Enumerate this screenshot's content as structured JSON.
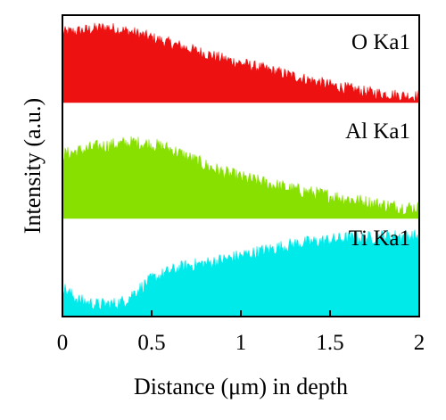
{
  "chart_data": {
    "type": "area",
    "xlabel": "Distance (μm) in depth",
    "ylabel": "Intensity (a.u.)",
    "xlim": [
      0,
      2
    ],
    "xticks": [
      "0",
      "0.5",
      "1",
      "1.5",
      "2"
    ],
    "grid": false,
    "stacked_panels": true,
    "series": [
      {
        "name": "O Ka1",
        "color": "#ee1111",
        "x": [
          0,
          0.1,
          0.2,
          0.25,
          0.3,
          0.4,
          0.5,
          0.6,
          0.7,
          0.8,
          0.9,
          1.0,
          1.1,
          1.2,
          1.3,
          1.4,
          1.5,
          1.6,
          1.7,
          1.8,
          1.9,
          2.0
        ],
        "values": [
          0.8,
          0.82,
          0.85,
          0.86,
          0.84,
          0.8,
          0.74,
          0.68,
          0.62,
          0.56,
          0.5,
          0.45,
          0.4,
          0.35,
          0.3,
          0.25,
          0.2,
          0.16,
          0.12,
          0.1,
          0.08,
          0.07
        ]
      },
      {
        "name": "Al Ka1",
        "color": "#88e000",
        "x": [
          0,
          0.1,
          0.2,
          0.3,
          0.4,
          0.5,
          0.6,
          0.7,
          0.8,
          0.9,
          1.0,
          1.1,
          1.2,
          1.3,
          1.4,
          1.5,
          1.6,
          1.7,
          1.8,
          1.9,
          2.0
        ],
        "values": [
          0.62,
          0.66,
          0.7,
          0.72,
          0.74,
          0.72,
          0.68,
          0.6,
          0.52,
          0.45,
          0.4,
          0.36,
          0.32,
          0.28,
          0.25,
          0.22,
          0.19,
          0.16,
          0.13,
          0.11,
          0.1
        ]
      },
      {
        "name": "Ti Ka1",
        "color": "#00eaea",
        "x": [
          0,
          0.05,
          0.1,
          0.2,
          0.3,
          0.35,
          0.4,
          0.5,
          0.6,
          0.7,
          0.8,
          0.9,
          1.0,
          1.1,
          1.2,
          1.3,
          1.4,
          1.5,
          1.6,
          1.7,
          1.8,
          1.9,
          2.0
        ],
        "values": [
          0.3,
          0.22,
          0.16,
          0.12,
          0.13,
          0.16,
          0.24,
          0.38,
          0.46,
          0.52,
          0.54,
          0.58,
          0.62,
          0.66,
          0.7,
          0.74,
          0.76,
          0.78,
          0.8,
          0.8,
          0.82,
          0.82,
          0.82
        ]
      }
    ]
  }
}
